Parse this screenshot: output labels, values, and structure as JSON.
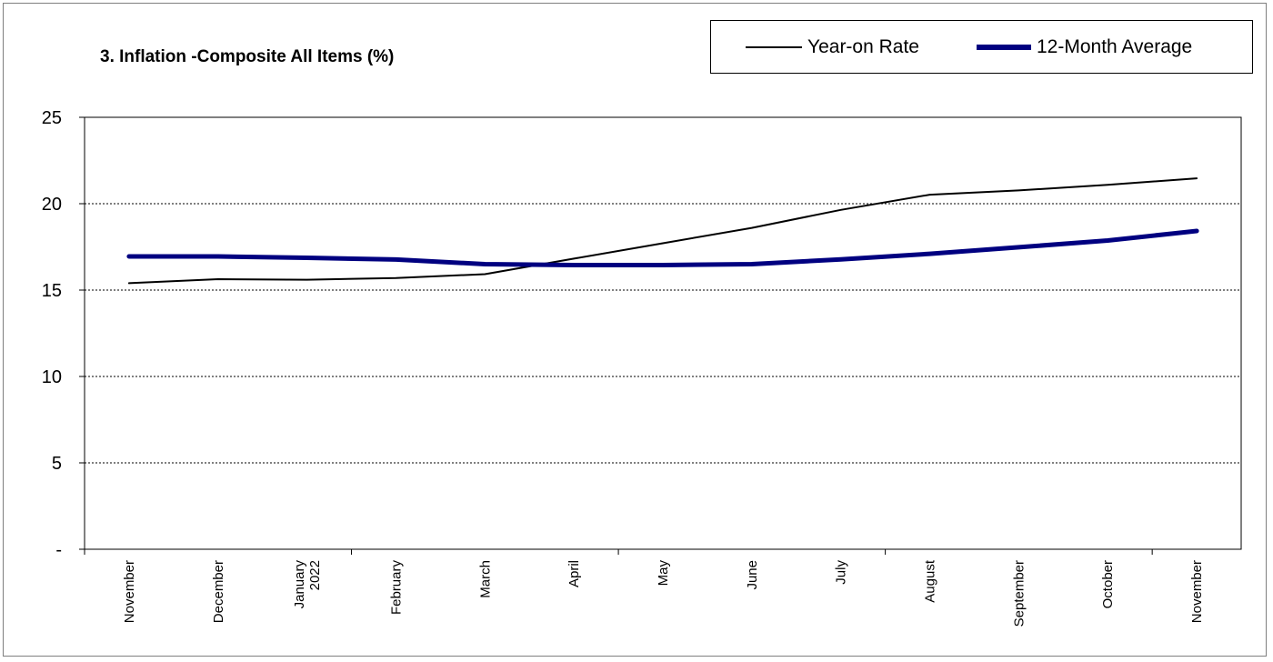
{
  "chart_data": {
    "type": "line",
    "title": "3. Inflation -Composite All Items (%)",
    "xlabel": "",
    "ylabel": "",
    "categories": [
      "November",
      "December",
      "January\n2022",
      "February",
      "March",
      "April",
      "May",
      "June",
      "July",
      "August",
      "September",
      "October",
      "November"
    ],
    "ylim": [
      0,
      25
    ],
    "yticks": [
      0,
      5,
      10,
      15,
      20,
      25
    ],
    "ytick_labels": [
      "-",
      "5",
      "10",
      "15",
      "20",
      "25"
    ],
    "grid": "horizontal dashed",
    "legend_position": "top-right",
    "series": [
      {
        "name": "Year-on Rate",
        "color": "#000000",
        "values": [
          15.4,
          15.63,
          15.6,
          15.7,
          15.92,
          16.82,
          17.71,
          18.6,
          19.64,
          20.52,
          20.77,
          21.09,
          21.47
        ]
      },
      {
        "name": "12-Month Average",
        "color": "#000080",
        "values": [
          16.95,
          16.95,
          16.87,
          16.77,
          16.5,
          16.45,
          16.45,
          16.5,
          16.78,
          17.1,
          17.48,
          17.87,
          18.42
        ]
      }
    ]
  }
}
